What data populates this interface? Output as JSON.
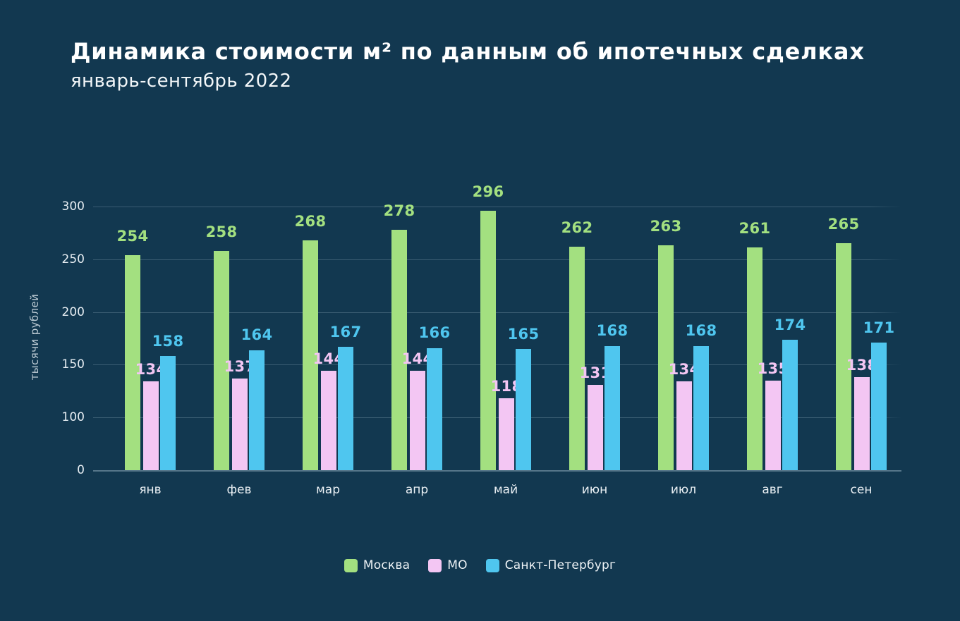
{
  "title": "Динамика стоимости м² по данным об ипотечных сделках",
  "subtitle": "январь-сентябрь 2022",
  "chart_data": {
    "type": "bar",
    "title": "Динамика стоимости м² по данным об ипотечных сделках",
    "subtitle": "январь-сентябрь 2022",
    "ylabel": "тысячи рублей",
    "xlabel": "",
    "categories": [
      "янв",
      "фев",
      "мар",
      "апр",
      "май",
      "июн",
      "июл",
      "авг",
      "сен"
    ],
    "series": [
      {
        "name": "Москва",
        "color": "#a3e080",
        "values": [
          254,
          258,
          268,
          278,
          296,
          262,
          263,
          261,
          265
        ]
      },
      {
        "name": "МО",
        "color": "#f3c6f3",
        "values": [
          134,
          137,
          144,
          144,
          118,
          131,
          134,
          135,
          138
        ]
      },
      {
        "name": "Санкт-Петербург",
        "color": "#4fc6ef",
        "values": [
          158,
          164,
          167,
          166,
          165,
          168,
          168,
          174,
          171
        ]
      }
    ],
    "yticks": [
      300,
      250,
      200,
      150,
      100,
      0
    ],
    "ylim": [
      0,
      300
    ],
    "grid": true,
    "legend_position": "bottom",
    "value_labels": true,
    "axis_note": "gridlines equally spaced; bottom interval 0–100 compressed to one step"
  },
  "theme": {
    "background": "#123850",
    "grid_color": "rgba(214,235,247,0.20)",
    "tick_color": "#e6edf2",
    "text_color": "#ffffff"
  }
}
